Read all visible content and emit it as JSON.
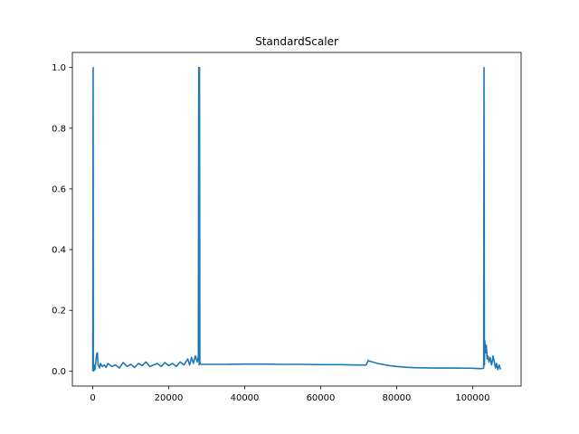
{
  "chart_data": {
    "type": "line",
    "title": "StandardScaler",
    "xlabel": "",
    "ylabel": "",
    "xlim": [
      -5369,
      112757
    ],
    "ylim": [
      -0.0495,
      1.0495
    ],
    "x_ticks": [
      0,
      20000,
      40000,
      60000,
      80000,
      100000
    ],
    "x_tick_labels": [
      "0",
      "20000",
      "40000",
      "60000",
      "80000",
      "100000"
    ],
    "y_ticks": [
      0.0,
      0.2,
      0.4,
      0.6,
      0.8,
      1.0
    ],
    "y_tick_labels": [
      "0.0",
      "0.2",
      "0.4",
      "0.6",
      "0.8",
      "1.0"
    ],
    "grid": false,
    "series": [
      {
        "color": "#1f77b4",
        "x": [
          0,
          100,
          150,
          250,
          400,
          600,
          800,
          1000,
          1200,
          1400,
          1600,
          1800,
          2000,
          2500,
          3000,
          3500,
          4000,
          5000,
          6000,
          7000,
          8000,
          9000,
          10000,
          11000,
          12000,
          13000,
          14000,
          15000,
          16000,
          17000,
          18000,
          19000,
          20000,
          21000,
          22000,
          23000,
          24000,
          25000,
          25500,
          26000,
          26500,
          27000,
          27500,
          27800,
          27900,
          28000,
          28100,
          28200,
          28300,
          28500,
          30000,
          35000,
          40000,
          45000,
          50000,
          55000,
          60000,
          65000,
          70000,
          72000,
          72500,
          73000,
          75000,
          78000,
          80000,
          83000,
          85000,
          90000,
          95000,
          100000,
          102000,
          102900,
          103000,
          103100,
          103200,
          103400,
          103600,
          103800,
          104000,
          104300,
          104600,
          105000,
          105400,
          105700,
          106000,
          106300,
          106600,
          107000,
          107300
        ],
        "y": [
          0.0,
          1.0,
          0.01,
          0.0,
          0.02,
          0.005,
          0.03,
          0.055,
          0.06,
          0.02,
          0.015,
          0.01,
          0.025,
          0.015,
          0.02,
          0.012,
          0.025,
          0.015,
          0.02,
          0.01,
          0.028,
          0.015,
          0.022,
          0.012,
          0.025,
          0.018,
          0.03,
          0.015,
          0.02,
          0.025,
          0.015,
          0.028,
          0.018,
          0.025,
          0.015,
          0.03,
          0.02,
          0.04,
          0.02,
          0.045,
          0.025,
          0.05,
          0.03,
          0.05,
          1.0,
          0.02,
          1.0,
          0.03,
          0.025,
          0.022,
          0.022,
          0.022,
          0.023,
          0.023,
          0.022,
          0.022,
          0.021,
          0.021,
          0.02,
          0.02,
          0.035,
          0.032,
          0.025,
          0.018,
          0.015,
          0.012,
          0.011,
          0.01,
          0.01,
          0.009,
          0.008,
          0.009,
          1.0,
          0.02,
          0.1,
          0.06,
          0.085,
          0.04,
          0.05,
          0.03,
          0.045,
          0.02,
          0.05,
          0.03,
          0.01,
          0.025,
          0.005,
          0.02,
          0.005
        ]
      }
    ]
  }
}
